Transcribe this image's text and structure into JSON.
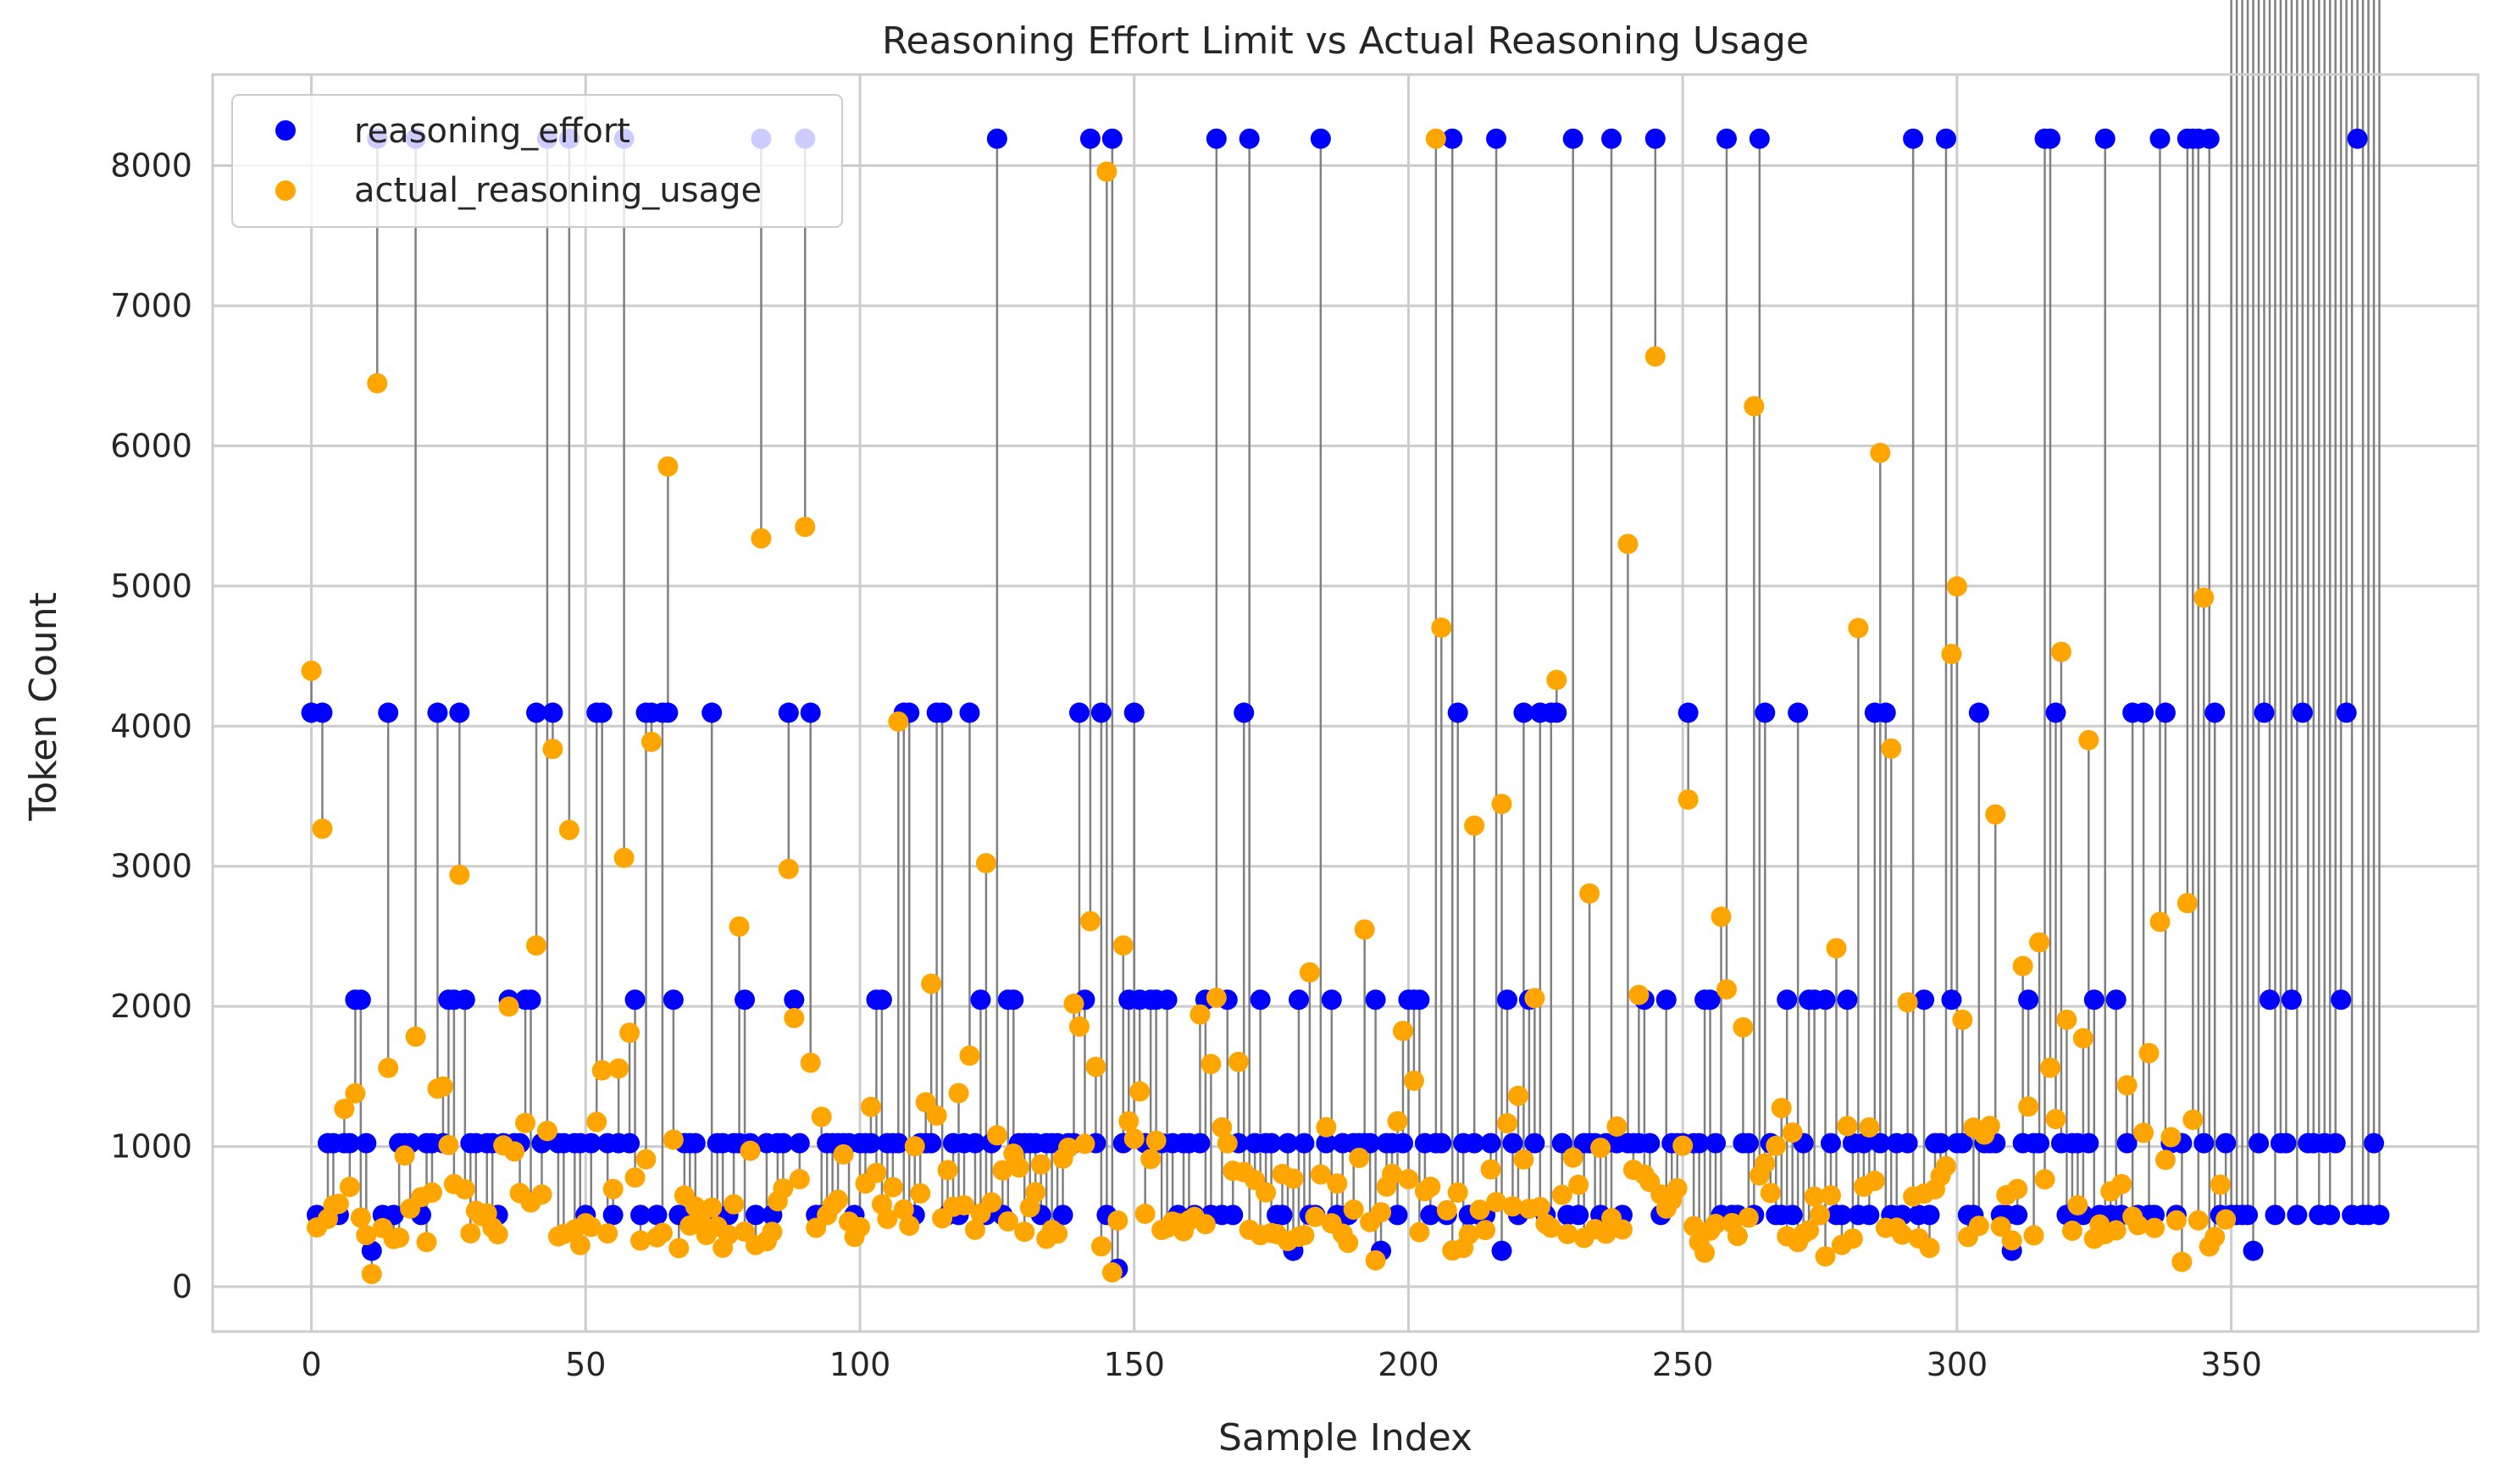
{
  "chart_data": {
    "type": "scatter",
    "title": "Reasoning Effort Limit vs Actual Reasoning Usage",
    "xlabel": "Sample Index",
    "ylabel": "Token Count",
    "xlim": [
      -18,
      395
    ],
    "ylim": [
      -320,
      8650
    ],
    "xticks": [
      0,
      50,
      100,
      150,
      200,
      250,
      300,
      350
    ],
    "yticks": [
      0,
      1000,
      2000,
      3000,
      4000,
      5000,
      6000,
      7000,
      8000
    ],
    "grid": true,
    "legend_position": "top-left",
    "connector_color": "#808080",
    "series": [
      {
        "name": "reasoning_effort",
        "color": "#0000ff",
        "values": [
          4096,
          512,
          4096,
          1024,
          1024,
          512,
          1024,
          1024,
          2048,
          2048,
          1024,
          256,
          8192,
          512,
          4096,
          512,
          1024,
          1024,
          1024,
          8192,
          512,
          1024,
          1024,
          4096,
          1024,
          2048,
          2048,
          4096,
          2048,
          1024,
          1024,
          512,
          1024,
          1024,
          512,
          1024,
          2048,
          1024,
          1024,
          2048,
          2048,
          4096,
          1024,
          8192,
          4096,
          1024,
          1024,
          8192,
          1024,
          1024,
          512,
          1024,
          4096,
          4096,
          1024,
          512,
          1024,
          8192,
          1024,
          2048,
          512,
          4096,
          4096,
          512,
          4096,
          4096,
          2048,
          512,
          1024,
          1024,
          1024,
          512,
          512,
          4096,
          1024,
          1024,
          512,
          1024,
          1024,
          2048,
          1024,
          512,
          8192,
          1024,
          512,
          1024,
          1024,
          4096,
          2048,
          1024,
          8192,
          4096,
          512,
          512,
          1024,
          1024,
          1024,
          1024,
          1024,
          512,
          1024,
          1024,
          1024,
          2048,
          2048,
          1024,
          1024,
          1024,
          4096,
          4096,
          512,
          1024,
          1024,
          1024,
          4096,
          4096,
          512,
          1024,
          512,
          1024,
          4096,
          1024,
          2048,
          512,
          1024,
          8192,
          512,
          2048,
          2048,
          1024,
          1024,
          1024,
          1024,
          512,
          1024,
          1024,
          1024,
          512,
          1024,
          1024,
          4096,
          2048,
          8192,
          1024,
          4096,
          512,
          8192,
          128,
          1024,
          2048,
          4096,
          2048,
          1024,
          2048,
          2048,
          1024,
          2048,
          1024,
          512,
          1024,
          1024,
          512,
          1024,
          2048,
          512,
          8192,
          512,
          2048,
          512,
          1024,
          4096,
          8192,
          1024,
          2048,
          1024,
          1024,
          512,
          512,
          1024,
          256,
          2048,
          1024,
          512,
          512,
          8192,
          1024,
          2048,
          512,
          1024,
          512,
          1024,
          1024,
          1024,
          1024,
          2048,
          256,
          1024,
          1024,
          512,
          1024,
          2048,
          2048,
          2048,
          1024,
          512,
          1024,
          1024,
          512,
          8192,
          4096,
          1024,
          512,
          1024,
          512,
          512,
          1024,
          8192,
          256,
          2048,
          1024,
          512,
          4096,
          2048,
          1024,
          4096,
          512,
          4096,
          4096,
          1024,
          512,
          8192,
          512,
          1024,
          1024,
          1024,
          512,
          1024,
          8192,
          1024,
          512,
          1024,
          1024,
          1024,
          2048,
          1024,
          8192,
          512,
          2048,
          1024,
          1024,
          1024,
          4096,
          1024,
          1024,
          2048,
          2048,
          1024,
          512,
          8192,
          512,
          512,
          1024,
          1024,
          512,
          8192,
          4096,
          1024,
          512,
          512,
          2048,
          512,
          4096,
          1024,
          2048,
          2048,
          512,
          2048,
          1024,
          512,
          512,
          2048,
          1024,
          512,
          1024,
          512,
          4096,
          1024,
          4096,
          512,
          1024,
          512,
          1024,
          8192,
          512,
          2048,
          512,
          1024,
          1024,
          8192,
          2048,
          1024,
          1024,
          512,
          512,
          4096,
          1024,
          1024,
          1024,
          512,
          512,
          256,
          512,
          1024,
          2048,
          1024,
          1024,
          8192,
          8192,
          4096,
          1024,
          512,
          1024,
          1024,
          512,
          1024,
          2048,
          512,
          8192,
          512,
          2048,
          512,
          1024,
          4096,
          512,
          4096,
          512,
          512,
          8192,
          4096,
          1024,
          512,
          1024,
          8192,
          8192,
          8192,
          1024,
          8192,
          4096,
          512,
          1024,
          512,
          512,
          512,
          512,
          256,
          1024,
          4096,
          2048,
          512,
          1024,
          1024,
          2048,
          512,
          4096,
          1024,
          1024,
          512,
          1024,
          512,
          1024,
          2048,
          4096,
          512,
          8192,
          512,
          512,
          1024,
          512
        ]
      },
      {
        "name": "actual_reasoning_usage",
        "color": "#ffa500",
        "values": [
          4395,
          423,
          3268,
          484,
          580,
          591,
          1269,
          712,
          1380,
          493,
          368,
          91,
          6447,
          418,
          1561,
          340,
          350,
          936,
          557,
          1784,
          639,
          318,
          672,
          1413,
          1428,
          1011,
          732,
          2939,
          695,
          381,
          541,
          504,
          523,
          422,
          374,
          1008,
          1999,
          965,
          668,
          1168,
          601,
          2435,
          658,
          1111,
          3837,
          359,
          376,
          3259,
          408,
          297,
          453,
          427,
          1176,
          1544,
          380,
          697,
          1557,
          3060,
          1812,
          779,
          329,
          909,
          3888,
          352,
          384,
          5853,
          1049,
          275,
          650,
          436,
          572,
          463,
          369,
          564,
          429,
          278,
          370,
          588,
          2570,
          393,
          970,
          297,
          5340,
          324,
          391,
          610,
          701,
          2981,
          1917,
          767,
          5422,
          1598,
          420,
          1212,
          511,
          580,
          620,
          944,
          464,
          355,
          425,
          736,
          1283,
          812,
          588,
          484,
          710,
          4033,
          551,
          435,
          1002,
          666,
          1316,
          2162,
          1221,
          488,
          832,
          570,
          1381,
          581,
          1649,
          406,
          522,
          3022,
          601,
          1080,
          830,
          466,
          949,
          850,
          392,
          566,
          674,
          872,
          342,
          405,
          379,
          914,
          992,
          2019,
          1856,
          1019,
          2608,
          1569,
          288,
          7957,
          102,
          472,
          2435,
          1180,
          1055,
          1393,
          520,
          911,
          1042,
          405,
          420,
          464,
          453,
          396,
          473,
          498,
          1943,
          446,
          1589,
          2062,
          1137,
          1023,
          827,
          1604,
          818,
          406,
          761,
          368,
          673,
          383,
          375,
          804,
          326,
          771,
          356,
          367,
          2243,
          498,
          801,
          1138,
          452,
          736,
          378,
          313,
          550,
          919,
          2549,
          461,
          188,
          531,
          714,
          805,
          1180,
          1825,
          767,
          1470,
          389,
          682,
          713,
          8192,
          4703,
          545,
          258,
          672,
          277,
          373,
          3290,
          549,
          404,
          837,
          604,
          3445,
          1166,
          573,
          1362,
          908,
          556,
          2059,
          568,
          449,
          421,
          4330,
          655,
          376,
          921,
          727,
          348,
          2806,
          411,
          991,
          378,
          489,
          1143,
          408,
          5300,
          834,
          2082,
          800,
          747,
          6638,
          658,
          557,
          618,
          702,
          1006,
          3476,
          431,
          319,
          243,
          400,
          448,
          2640,
          2122,
          454,
          362,
          1851,
          493,
          6283,
          794,
          880,
          669,
          1005,
          1275,
          360,
          1100,
          318,
          377,
          402,
          643,
          512,
          216,
          652,
          2415,
          298,
          1146,
          343,
          4700,
          713,
          1137,
          755,
          5950,
          420,
          3840,
          421,
          372,
          2029,
          643,
          345,
          664,
          277,
          696,
          789,
          860,
          4515,
          4997,
          1905,
          355,
          1135,
          434,
          1085,
          1147,
          3370,
          429,
          653,
          330,
          697,
          2288,
          1285,
          366,
          2457,
          766,
          1562,
          1196,
          4530,
          1905,
          399,
          581,
          1773,
          3900,
          342,
          444,
          375,
          680,
          402,
          732,
          1437,
          500,
          439,
          1098,
          1667,
          419,
          2603,
          905,
          1067,
          473,
          177,
          2737,
          1191,
          473,
          4917,
          287,
          355,
          728,
          480
        ]
      }
    ]
  }
}
